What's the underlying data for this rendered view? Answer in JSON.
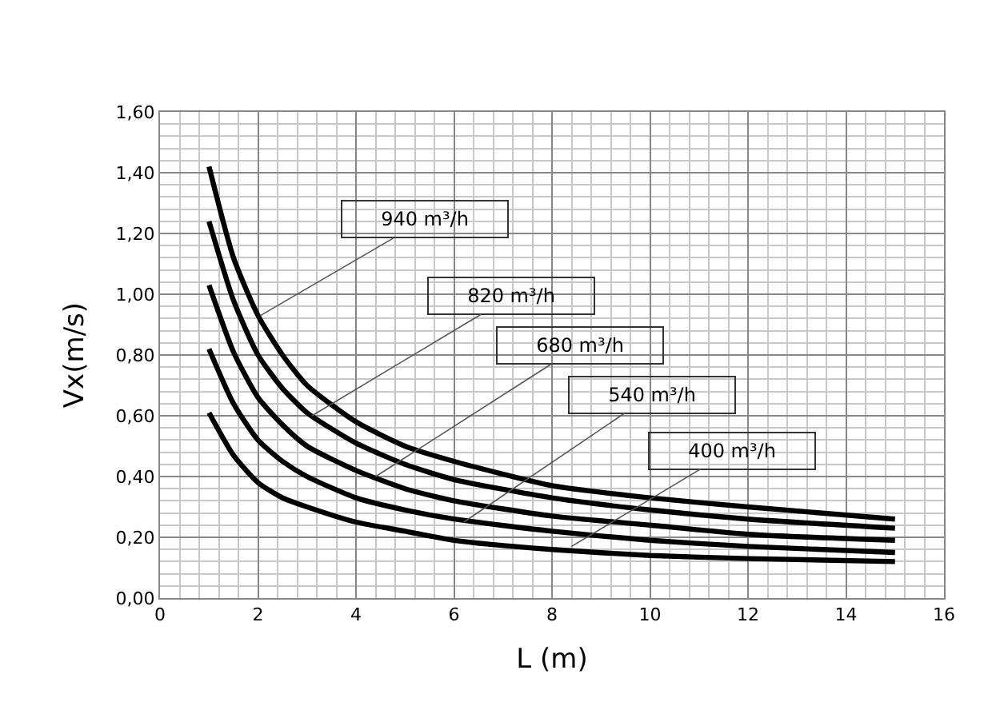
{
  "chart_data": {
    "type": "line",
    "xlabel": "L (m)",
    "ylabel": "Vx(m/s)",
    "x": [
      1,
      1.5,
      2,
      2.5,
      3,
      4,
      5,
      6,
      8,
      10,
      12,
      15
    ],
    "series": [
      {
        "color": "#000000",
        "values": [
          1.42,
          1.12,
          0.93,
          0.8,
          0.7,
          0.58,
          0.5,
          0.45,
          0.37,
          0.33,
          0.3,
          0.26
        ]
      },
      {
        "color": "#000000",
        "values": [
          1.24,
          0.98,
          0.8,
          0.69,
          0.61,
          0.51,
          0.44,
          0.39,
          0.33,
          0.29,
          0.26,
          0.23
        ]
      },
      {
        "color": "#000000",
        "values": [
          1.03,
          0.81,
          0.66,
          0.57,
          0.5,
          0.42,
          0.36,
          0.32,
          0.27,
          0.24,
          0.21,
          0.19
        ]
      },
      {
        "color": "#000000",
        "values": [
          0.82,
          0.64,
          0.52,
          0.45,
          0.4,
          0.33,
          0.29,
          0.26,
          0.22,
          0.19,
          0.17,
          0.15
        ]
      },
      {
        "color": "#000000",
        "values": [
          0.61,
          0.47,
          0.38,
          0.33,
          0.3,
          0.25,
          0.22,
          0.19,
          0.16,
          0.14,
          0.13,
          0.12
        ]
      }
    ],
    "annotations": [
      {
        "text": "940 m³/h",
        "x": 2.05,
        "y": 0.93
      },
      {
        "text": "820 m³/h",
        "x": 3.1,
        "y": 0.6
      },
      {
        "text": "680 m³/h",
        "x": 4.4,
        "y": 0.4
      },
      {
        "text": "540 m³/h",
        "x": 6.2,
        "y": 0.25
      },
      {
        "text": "400 m³/h",
        "x": 8.4,
        "y": 0.17
      }
    ],
    "xlim": [
      0,
      16
    ],
    "xticks": [
      0,
      2,
      4,
      6,
      8,
      10,
      12,
      14,
      16
    ],
    "ylim": [
      0,
      1.6
    ],
    "yticks": [
      {
        "value": 0,
        "label": "0,00"
      },
      {
        "value": 0.2,
        "label": "0,20"
      },
      {
        "value": 0.4,
        "label": "0,40"
      },
      {
        "value": 0.6,
        "label": "0,60"
      },
      {
        "value": 0.8,
        "label": "0,80"
      },
      {
        "value": 1.0,
        "label": "1,00"
      },
      {
        "value": 1.2,
        "label": "1,20"
      },
      {
        "value": 1.4,
        "label": "1,40"
      },
      {
        "value": 1.6,
        "label": "1,60"
      }
    ],
    "grid": true,
    "marker": "none",
    "line_style": "solid"
  }
}
